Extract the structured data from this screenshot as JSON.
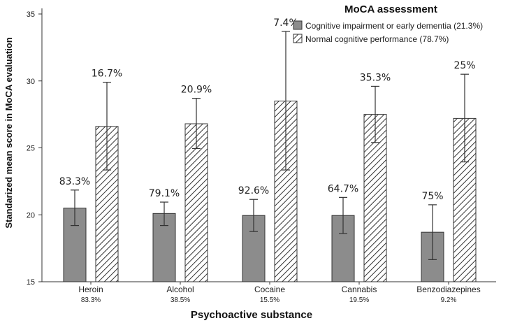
{
  "chart_data": {
    "type": "bar",
    "xlabel": "Psychoactive substance",
    "ylabel": "Standarized mean score in MoCA evaluation",
    "ylim": [
      15,
      35
    ],
    "yticks": [
      15,
      20,
      25,
      30,
      35
    ],
    "categories": [
      "Heroin",
      "Alcohol",
      "Cocaine",
      "Cannabis",
      "Benzodiazepines"
    ],
    "category_shares": [
      "83.3%",
      "38.5%",
      "15.5%",
      "19.5%",
      "9.2%"
    ],
    "legend": {
      "title": "MoCA assessment",
      "position": "top-right"
    },
    "series": [
      {
        "name": "Cognitive impairment or early dementia (21.3%)",
        "pattern": "solid",
        "color": "#8c8c8c",
        "values": [
          20.5,
          20.1,
          19.95,
          19.95,
          18.7
        ],
        "error_low": [
          19.2,
          19.2,
          18.75,
          18.6,
          16.65
        ],
        "error_high": [
          21.85,
          20.95,
          21.15,
          21.3,
          20.75
        ],
        "labels": [
          "83.3%",
          "79.1%",
          "92.6%",
          "64.7%",
          "75%"
        ]
      },
      {
        "name": "Normal cognitive performance (78.7%)",
        "pattern": "hatched",
        "color": "#ffffff",
        "values": [
          26.6,
          26.8,
          28.5,
          27.5,
          27.2
        ],
        "error_low": [
          23.35,
          24.95,
          23.35,
          25.4,
          23.95
        ],
        "error_high": [
          29.9,
          28.7,
          33.7,
          29.6,
          30.5
        ],
        "labels": [
          "16.7%",
          "20.9%",
          "7.4%",
          "35.3%",
          "25%"
        ]
      }
    ]
  }
}
